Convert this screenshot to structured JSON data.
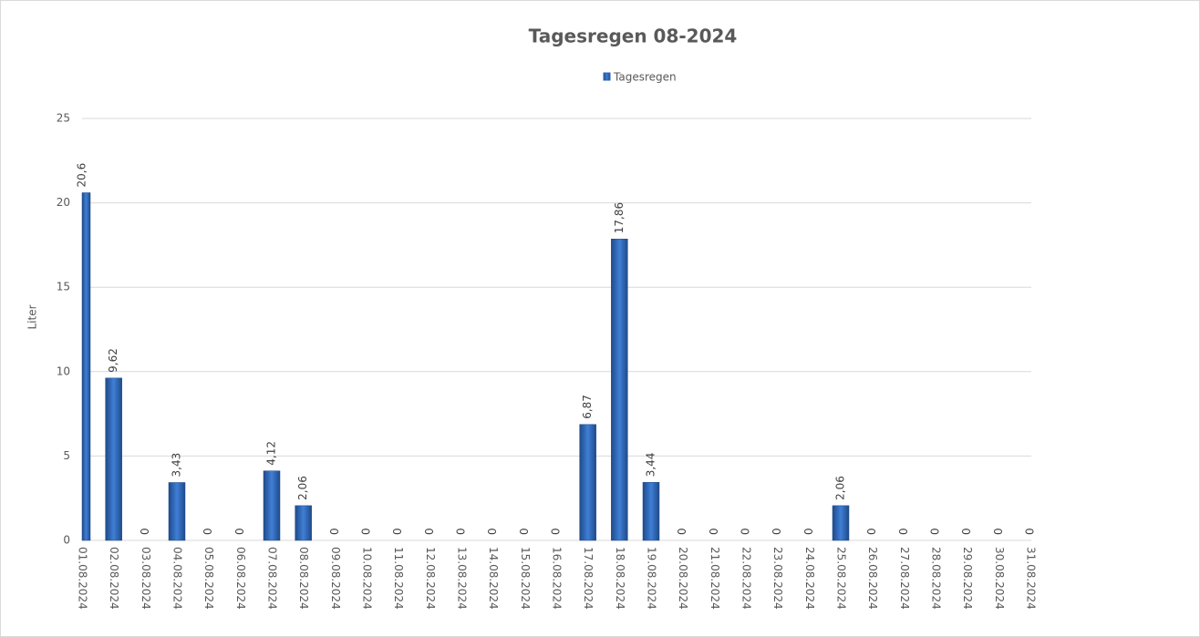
{
  "chart_data": {
    "type": "bar",
    "title": "Tagesregen 08-2024",
    "y_label": "Liter",
    "categories": [
      "01.08.2024",
      "02.08.2024",
      "03.08.2024",
      "04.08.2024",
      "05.08.2024",
      "06.08.2024",
      "07.08.2024",
      "08.08.2024",
      "09.08.2024",
      "10.08.2024",
      "11.08.2024",
      "12.08.2024",
      "13.08.2024",
      "14.08.2024",
      "15.08.2024",
      "16.08.2024",
      "17.08.2024",
      "18.08.2024",
      "19.08.2024",
      "20.08.2024",
      "21.08.2024",
      "22.08.2024",
      "23.08.2024",
      "24.08.2024",
      "25.08.2024",
      "26.08.2024",
      "27.08.2024",
      "28.08.2024",
      "29.08.2024",
      "30.08.2024",
      "31.08.2024"
    ],
    "series": [
      {
        "name": "Tagesregen",
        "color": "#2e64b4",
        "values": [
          20.6,
          9.62,
          0,
          3.43,
          0,
          0,
          4.12,
          2.06,
          0,
          0,
          0,
          0,
          0,
          0,
          0,
          0,
          6.87,
          17.86,
          3.44,
          0,
          0,
          0,
          0,
          0,
          2.06,
          0,
          0,
          0,
          0,
          0,
          0
        ],
        "value_labels": [
          "20,6",
          "9,62",
          "0",
          "3,43",
          "0",
          "0",
          "4,12",
          "2,06",
          "0",
          "0",
          "0",
          "0",
          "0",
          "0",
          "0",
          "0",
          "6,87",
          "17,86",
          "3,44",
          "0",
          "0",
          "0",
          "0",
          "0",
          "2,06",
          "0",
          "0",
          "0",
          "0",
          "0",
          "0"
        ]
      }
    ],
    "ylim": [
      0,
      25
    ],
    "yticks": [
      0,
      5,
      10,
      15,
      20,
      25
    ],
    "grid": true,
    "legend": "top"
  }
}
